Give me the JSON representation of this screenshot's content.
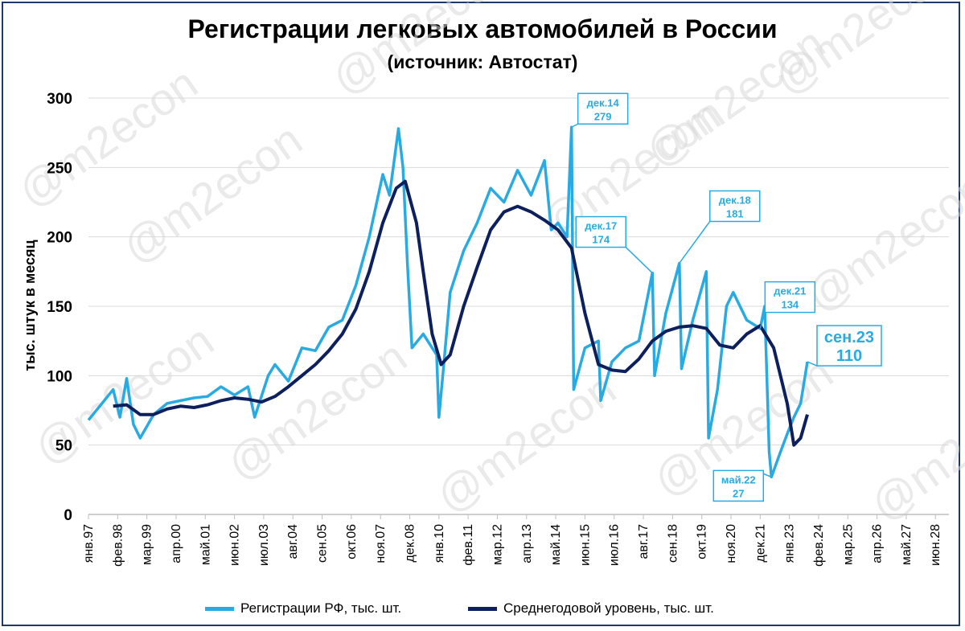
{
  "title": "Регистрации легковых автомобилей в России",
  "subtitle": "(источник: Автостат)",
  "watermark": "@m2econ",
  "colors": {
    "raw": "#29abe2",
    "avg": "#0d1f5c",
    "grid": "#d9d9d9",
    "frame": "#1f3864"
  },
  "legend": [
    {
      "name": "Регистрации РФ, тыс. шт.",
      "color": "#29abe2"
    },
    {
      "name": "Среднегодовой уровень, тыс. шт.",
      "color": "#0d1f5c"
    }
  ],
  "chart_data": {
    "type": "line",
    "ylabel": "тыс. штук в месяц",
    "ylim": [
      0,
      300
    ],
    "yticks": [
      0,
      50,
      100,
      150,
      200,
      250,
      300
    ],
    "grid": "horizontal",
    "legend_position": "bottom",
    "x_range": [
      "янв.97",
      "дек.28"
    ],
    "xtick_labels": [
      "янв.97",
      "фев.98",
      "мар.99",
      "апр.00",
      "май.01",
      "июн.02",
      "июл.03",
      "авг.04",
      "сен.05",
      "окт.06",
      "ноя.07",
      "дек.08",
      "янв.10",
      "фев.11",
      "мар.12",
      "апр.13",
      "май.14",
      "июн.15",
      "июл.16",
      "авг.17",
      "сен.18",
      "окт.19",
      "ноя.20",
      "дек.21",
      "янв.23",
      "фев.24",
      "мар.25",
      "апр.26",
      "май.27",
      "июн.28"
    ],
    "series": [
      {
        "name": "Регистрации РФ, тыс. шт.",
        "points": [
          [
            "1997-01",
            68
          ],
          [
            "1997-07",
            80
          ],
          [
            "1997-12",
            90
          ],
          [
            "1998-03",
            70
          ],
          [
            "1998-06",
            98
          ],
          [
            "1998-09",
            65
          ],
          [
            "1998-12",
            55
          ],
          [
            "1999-06",
            72
          ],
          [
            "1999-12",
            80
          ],
          [
            "2000-06",
            82
          ],
          [
            "2000-12",
            84
          ],
          [
            "2001-06",
            85
          ],
          [
            "2001-12",
            92
          ],
          [
            "2002-06",
            86
          ],
          [
            "2002-12",
            92
          ],
          [
            "2003-03",
            70
          ],
          [
            "2003-09",
            100
          ],
          [
            "2003-12",
            108
          ],
          [
            "2004-06",
            96
          ],
          [
            "2004-12",
            120
          ],
          [
            "2005-06",
            118
          ],
          [
            "2005-12",
            135
          ],
          [
            "2006-06",
            140
          ],
          [
            "2006-12",
            165
          ],
          [
            "2007-06",
            200
          ],
          [
            "2007-12",
            245
          ],
          [
            "2008-03",
            230
          ],
          [
            "2008-07",
            278
          ],
          [
            "2008-09",
            250
          ],
          [
            "2008-11",
            180
          ],
          [
            "2009-01",
            120
          ],
          [
            "2009-06",
            130
          ],
          [
            "2009-12",
            115
          ],
          [
            "2010-01",
            70
          ],
          [
            "2010-03",
            105
          ],
          [
            "2010-06",
            160
          ],
          [
            "2010-12",
            190
          ],
          [
            "2011-06",
            210
          ],
          [
            "2011-12",
            235
          ],
          [
            "2012-06",
            225
          ],
          [
            "2012-12",
            248
          ],
          [
            "2013-06",
            230
          ],
          [
            "2013-12",
            255
          ],
          [
            "2014-03",
            205
          ],
          [
            "2014-06",
            210
          ],
          [
            "2014-10",
            200
          ],
          [
            "2014-12",
            279
          ],
          [
            "2015-01",
            90
          ],
          [
            "2015-06",
            120
          ],
          [
            "2015-12",
            125
          ],
          [
            "2016-01",
            82
          ],
          [
            "2016-06",
            110
          ],
          [
            "2016-12",
            120
          ],
          [
            "2017-06",
            125
          ],
          [
            "2017-12",
            174
          ],
          [
            "2018-01",
            100
          ],
          [
            "2018-06",
            145
          ],
          [
            "2018-12",
            181
          ],
          [
            "2019-01",
            105
          ],
          [
            "2019-06",
            140
          ],
          [
            "2019-12",
            175
          ],
          [
            "2020-01",
            55
          ],
          [
            "2020-05",
            90
          ],
          [
            "2020-09",
            150
          ],
          [
            "2020-12",
            160
          ],
          [
            "2021-06",
            140
          ],
          [
            "2021-12",
            134
          ],
          [
            "2022-02",
            150
          ],
          [
            "2022-04",
            45
          ],
          [
            "2022-05",
            27
          ],
          [
            "2022-09",
            45
          ],
          [
            "2022-12",
            58
          ],
          [
            "2023-03",
            70
          ],
          [
            "2023-06",
            80
          ],
          [
            "2023-09",
            110
          ]
        ]
      },
      {
        "name": "Среднегодовой уровень, тыс. шт.",
        "points": [
          [
            "1997-12",
            78
          ],
          [
            "1998-06",
            79
          ],
          [
            "1998-12",
            72
          ],
          [
            "1999-06",
            72
          ],
          [
            "1999-12",
            76
          ],
          [
            "2000-06",
            78
          ],
          [
            "2000-12",
            77
          ],
          [
            "2001-06",
            79
          ],
          [
            "2001-12",
            82
          ],
          [
            "2002-06",
            84
          ],
          [
            "2002-12",
            83
          ],
          [
            "2003-06",
            81
          ],
          [
            "2003-12",
            85
          ],
          [
            "2004-06",
            92
          ],
          [
            "2004-12",
            100
          ],
          [
            "2005-06",
            108
          ],
          [
            "2005-12",
            118
          ],
          [
            "2006-06",
            130
          ],
          [
            "2006-12",
            148
          ],
          [
            "2007-06",
            175
          ],
          [
            "2007-12",
            210
          ],
          [
            "2008-06",
            235
          ],
          [
            "2008-10",
            240
          ],
          [
            "2009-03",
            210
          ],
          [
            "2009-06",
            175
          ],
          [
            "2009-10",
            130
          ],
          [
            "2010-02",
            108
          ],
          [
            "2010-06",
            115
          ],
          [
            "2010-12",
            150
          ],
          [
            "2011-06",
            178
          ],
          [
            "2011-12",
            205
          ],
          [
            "2012-06",
            218
          ],
          [
            "2012-12",
            222
          ],
          [
            "2013-06",
            218
          ],
          [
            "2013-12",
            212
          ],
          [
            "2014-06",
            205
          ],
          [
            "2014-12",
            192
          ],
          [
            "2015-06",
            145
          ],
          [
            "2015-12",
            108
          ],
          [
            "2016-06",
            104
          ],
          [
            "2016-12",
            103
          ],
          [
            "2017-06",
            112
          ],
          [
            "2017-12",
            125
          ],
          [
            "2018-06",
            132
          ],
          [
            "2018-12",
            135
          ],
          [
            "2019-06",
            136
          ],
          [
            "2019-12",
            134
          ],
          [
            "2020-06",
            122
          ],
          [
            "2020-12",
            120
          ],
          [
            "2021-06",
            130
          ],
          [
            "2021-12",
            136
          ],
          [
            "2022-06",
            120
          ],
          [
            "2022-12",
            80
          ],
          [
            "2023-03",
            50
          ],
          [
            "2023-06",
            55
          ],
          [
            "2023-09",
            72
          ]
        ]
      }
    ],
    "annotations": [
      {
        "date": "2014-12",
        "value": 279,
        "label": "дек.14",
        "value_label": "279",
        "box": "upright"
      },
      {
        "date": "2017-12",
        "value": 174,
        "label": "дек.17",
        "value_label": "174",
        "box": "upleft"
      },
      {
        "date": "2018-12",
        "value": 181,
        "label": "дек.18",
        "value_label": "181",
        "box": "upright"
      },
      {
        "date": "2021-12",
        "value": 134,
        "label": "дек.21",
        "value_label": "134",
        "box": "upright"
      },
      {
        "date": "2022-05",
        "value": 27,
        "label": "май.22",
        "value_label": "27",
        "box": "downleft"
      },
      {
        "date": "2023-09",
        "value": 110,
        "label": "сен.23",
        "value_label": "110",
        "box": "bigright"
      }
    ]
  }
}
